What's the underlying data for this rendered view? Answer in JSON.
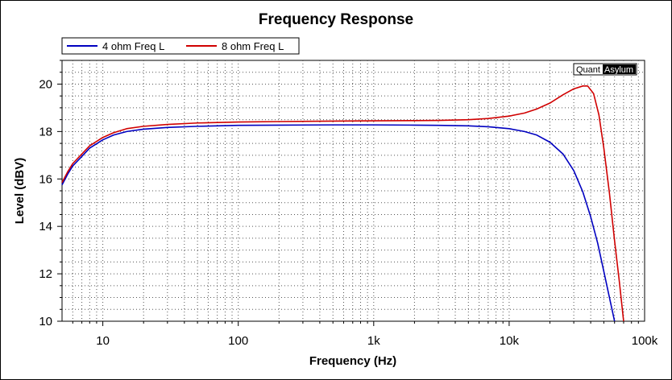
{
  "chart_data": {
    "type": "line",
    "title": "Frequency Response",
    "xlabel": "Frequency (Hz)",
    "ylabel": "Level (dBV)",
    "x_scale": "log",
    "xlim": [
      5,
      100000
    ],
    "ylim": [
      10,
      21
    ],
    "grid": true,
    "legend_position": "top-left",
    "x_ticks": [
      {
        "value": 10,
        "label": "10"
      },
      {
        "value": 100,
        "label": "100"
      },
      {
        "value": 1000,
        "label": "1k"
      },
      {
        "value": 10000,
        "label": "10k"
      },
      {
        "value": 100000,
        "label": "100k"
      }
    ],
    "y_ticks": [
      {
        "value": 10,
        "label": "10"
      },
      {
        "value": 12,
        "label": "12"
      },
      {
        "value": 14,
        "label": "14"
      },
      {
        "value": 16,
        "label": "16"
      },
      {
        "value": 18,
        "label": "18"
      },
      {
        "value": 20,
        "label": "20"
      }
    ],
    "series": [
      {
        "name": "4 ohm Freq L",
        "color": "#0000c0",
        "points": [
          [
            5,
            15.75
          ],
          [
            5.5,
            16.2
          ],
          [
            6,
            16.55
          ],
          [
            7,
            16.95
          ],
          [
            8,
            17.3
          ],
          [
            10,
            17.65
          ],
          [
            12,
            17.85
          ],
          [
            15,
            18.0
          ],
          [
            20,
            18.1
          ],
          [
            30,
            18.17
          ],
          [
            50,
            18.22
          ],
          [
            100,
            18.26
          ],
          [
            200,
            18.27
          ],
          [
            500,
            18.28
          ],
          [
            1000,
            18.28
          ],
          [
            2000,
            18.27
          ],
          [
            3000,
            18.26
          ],
          [
            5000,
            18.24
          ],
          [
            7000,
            18.2
          ],
          [
            10000,
            18.12
          ],
          [
            13000,
            18.0
          ],
          [
            16000,
            17.85
          ],
          [
            20000,
            17.55
          ],
          [
            25000,
            17.05
          ],
          [
            30000,
            16.35
          ],
          [
            35000,
            15.45
          ],
          [
            40000,
            14.4
          ],
          [
            45000,
            13.3
          ],
          [
            50000,
            12.1
          ],
          [
            55000,
            11.0
          ],
          [
            60000,
            10.0
          ]
        ]
      },
      {
        "name": "8 ohm Freq L",
        "color": "#d00000",
        "points": [
          [
            5,
            15.85
          ],
          [
            5.5,
            16.3
          ],
          [
            6,
            16.65
          ],
          [
            7,
            17.05
          ],
          [
            8,
            17.4
          ],
          [
            10,
            17.75
          ],
          [
            12,
            17.95
          ],
          [
            15,
            18.12
          ],
          [
            20,
            18.22
          ],
          [
            30,
            18.3
          ],
          [
            50,
            18.36
          ],
          [
            100,
            18.4
          ],
          [
            200,
            18.42
          ],
          [
            500,
            18.44
          ],
          [
            1000,
            18.45
          ],
          [
            2000,
            18.46
          ],
          [
            3000,
            18.47
          ],
          [
            5000,
            18.5
          ],
          [
            7000,
            18.55
          ],
          [
            10000,
            18.65
          ],
          [
            13000,
            18.78
          ],
          [
            16000,
            18.95
          ],
          [
            20000,
            19.2
          ],
          [
            25000,
            19.55
          ],
          [
            30000,
            19.8
          ],
          [
            35000,
            19.92
          ],
          [
            38000,
            19.92
          ],
          [
            42000,
            19.6
          ],
          [
            46000,
            18.7
          ],
          [
            50000,
            17.3
          ],
          [
            55000,
            15.4
          ],
          [
            60000,
            13.4
          ],
          [
            65000,
            11.7
          ],
          [
            70000,
            10.0
          ]
        ]
      }
    ],
    "watermark": "QuantAsylum"
  }
}
